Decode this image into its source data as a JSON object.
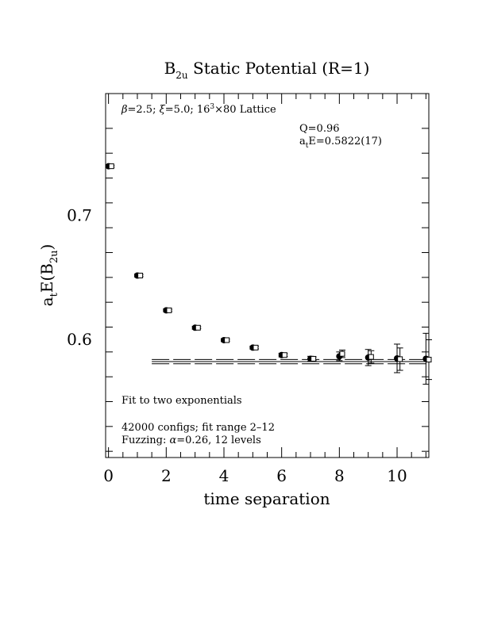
{
  "chart_data": {
    "type": "scatter",
    "title_main": "B",
    "title_sub": "2u",
    "title_rest": " Static Potential (R=1)",
    "xlabel": "time separation",
    "ylabel": {
      "p1": "a",
      "p1_sub": "t",
      "p2": "E(B",
      "p2_sub": "2u",
      "p3": ")"
    },
    "xlim": [
      -0.1,
      11.1
    ],
    "ylim": [
      0.505,
      0.798
    ],
    "x_ticks": [
      0,
      2,
      4,
      6,
      8,
      10
    ],
    "x_tick_labels": [
      "0",
      "2",
      "4",
      "6",
      "8",
      "10"
    ],
    "y_ticks": [
      0.6,
      0.7
    ],
    "y_tick_labels": [
      "0.6",
      "0.7"
    ],
    "lattice_text": {
      "beta": "β",
      "t1": "=2.5; ",
      "xi": "ξ",
      "t2": "=5.0; 16",
      "sup": "3",
      "t3": "×80 Lattice"
    },
    "q_text": "Q=0.96",
    "energy_text": {
      "a": "a",
      "sub": "t",
      "rest": "E=0.5822(17)"
    },
    "fit_label": "Fit to two exponentials",
    "configs_text": "42000 configs; fit range 2–12",
    "fuzzing_text": {
      "pre": "Fuzzing: ",
      "alpha": "α",
      "post": "=0.26, 12 levels"
    },
    "series": [
      {
        "marker": "filled-circle",
        "x": [
          0,
          1,
          2,
          3,
          4,
          5,
          6,
          7,
          8,
          9,
          10,
          11
        ],
        "y": [
          0.7395,
          0.6515,
          0.6235,
          0.6095,
          0.5995,
          0.5935,
          0.5875,
          0.5845,
          0.5865,
          0.5855,
          0.5848,
          0.5845
        ],
        "err": [
          0.0012,
          0.0012,
          0.0012,
          0.0012,
          0.0012,
          0.0012,
          0.0015,
          0.002,
          0.0035,
          0.0065,
          0.0115,
          0.0205
        ]
      },
      {
        "marker": "open-square",
        "x": [
          0.1,
          1.1,
          2.1,
          3.1,
          4.1,
          5.1,
          6.1,
          7.1,
          8.1,
          9.1,
          10.1,
          11.1
        ],
        "y": [
          0.7395,
          0.6515,
          0.6235,
          0.6095,
          0.5995,
          0.5935,
          0.5875,
          0.5845,
          0.5885,
          0.586,
          0.5842,
          0.5838
        ],
        "err": [
          0.0008,
          0.0008,
          0.0008,
          0.0008,
          0.0008,
          0.001,
          0.0012,
          0.0015,
          0.003,
          0.005,
          0.009,
          0.016
        ]
      }
    ],
    "fit": {
      "x_range": [
        1.5,
        11.1
      ],
      "central": 0.5822,
      "upper": 0.5839,
      "lower": 0.5805
    }
  }
}
